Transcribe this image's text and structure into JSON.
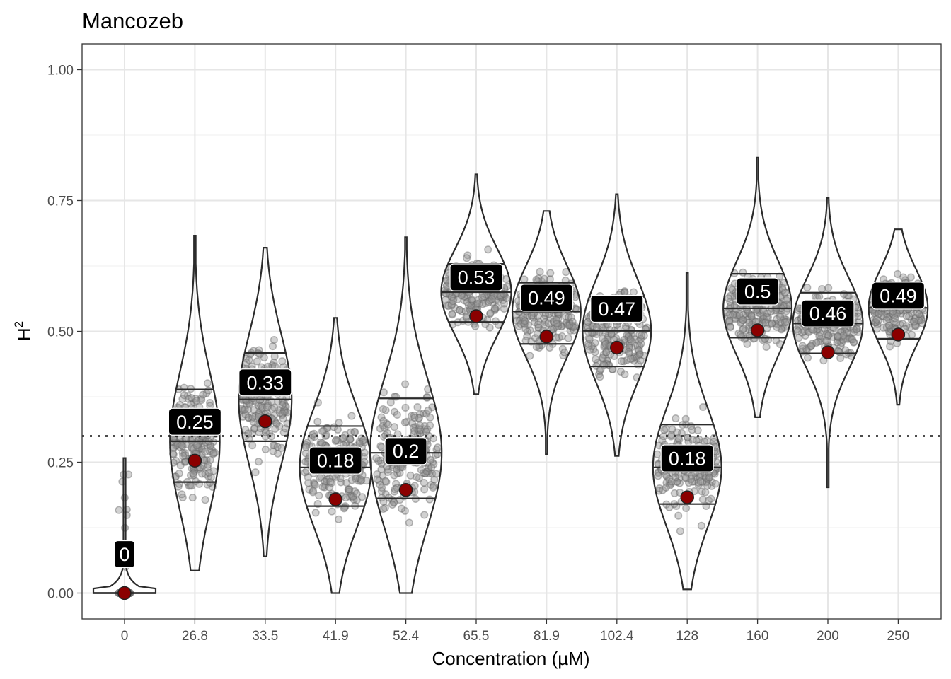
{
  "chart_data": {
    "type": "violin",
    "title": "Mancozeb",
    "xlabel": "Concentration (µM)",
    "ylabel": "H",
    "ylabel_superscript": "2",
    "ylim": [
      -0.05,
      1.05
    ],
    "y_ticks": [
      0.0,
      0.25,
      0.5,
      0.75,
      1.0
    ],
    "y_tick_labels": [
      "0.00",
      "0.25",
      "0.50",
      "0.75",
      "1.00"
    ],
    "threshold": 0.3,
    "categories": [
      "0",
      "26.8",
      "33.5",
      "41.9",
      "52.4",
      "65.5",
      "81.9",
      "102.4",
      "128",
      "160",
      "200",
      "250"
    ],
    "means": [
      0.0,
      0.253,
      0.328,
      0.179,
      0.197,
      0.529,
      0.49,
      0.469,
      0.183,
      0.502,
      0.46,
      0.494
    ],
    "mean_labels": [
      "0",
      "0.25",
      "0.33",
      "0.18",
      "0.2",
      "0.53",
      "0.49",
      "0.47",
      "0.18",
      "0.5",
      "0.46",
      "0.49"
    ],
    "ranges": [
      [
        0.0,
        0.258
      ],
      [
        0.043,
        0.683
      ],
      [
        0.07,
        0.66
      ],
      [
        0.0,
        0.526
      ],
      [
        0.0,
        0.68
      ],
      [
        0.38,
        0.8
      ],
      [
        0.265,
        0.73
      ],
      [
        0.262,
        0.762
      ],
      [
        0.007,
        0.612
      ],
      [
        0.336,
        0.832
      ],
      [
        0.202,
        0.755
      ],
      [
        0.36,
        0.695
      ]
    ],
    "quartiles": [
      [
        0.0,
        0.0,
        0.0
      ],
      [
        0.212,
        0.29,
        0.389
      ],
      [
        0.29,
        0.37,
        0.459
      ],
      [
        0.166,
        0.24,
        0.319
      ],
      [
        0.181,
        0.268,
        0.372
      ],
      [
        0.518,
        0.575,
        0.629
      ],
      [
        0.476,
        0.538,
        0.593
      ],
      [
        0.433,
        0.501,
        0.566
      ],
      [
        0.17,
        0.24,
        0.322
      ],
      [
        0.488,
        0.544,
        0.61
      ],
      [
        0.458,
        0.515,
        0.574
      ],
      [
        0.486,
        0.545,
        0.585
      ]
    ],
    "widths": [
      0.55,
      0.32,
      0.34,
      0.46,
      0.46,
      0.45,
      0.44,
      0.44,
      0.44,
      0.44,
      0.45,
      0.38
    ],
    "gridlines": true
  }
}
